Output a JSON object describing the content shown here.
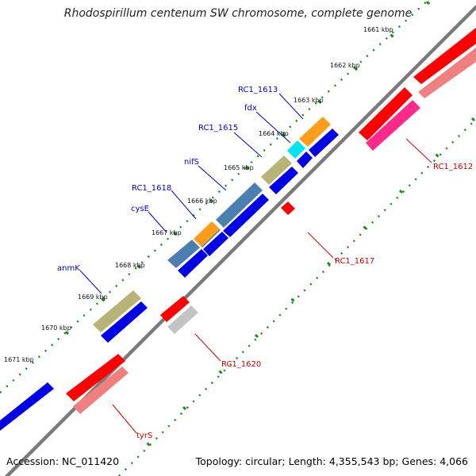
{
  "header": {
    "title": "Rhodospirillum centenum SW chromosome, complete genome"
  },
  "footer": {
    "accession": "Accession: NC_011420",
    "summary": "Topology: circular; Length: 4,355,543 bp; Genes: 4,066"
  },
  "ticks": [
    {
      "label": "1661 kbp"
    },
    {
      "label": "1662 kbp"
    },
    {
      "label": "1663 kbp"
    },
    {
      "label": "1664 kbp"
    },
    {
      "label": "1665 kbp"
    },
    {
      "label": "1666 kbp"
    },
    {
      "label": "1667 kbp"
    },
    {
      "label": "1668 kbp"
    },
    {
      "label": "1669 kbp"
    },
    {
      "label": "1670 kbp"
    },
    {
      "label": "1671 kbp"
    }
  ],
  "genes_forward": [
    {
      "label": "RC1_1613"
    },
    {
      "label": "fdx"
    },
    {
      "label": "RC1_1615"
    },
    {
      "label": "nifS"
    },
    {
      "label": "RC1_1618"
    },
    {
      "label": "cysE"
    },
    {
      "label": "anmK"
    }
  ],
  "genes_reverse": [
    {
      "label": "RC1_1612"
    },
    {
      "label": "RC1_1617"
    },
    {
      "label": "RC1_1620"
    },
    {
      "label": "tyrS"
    }
  ],
  "colors": {
    "backbone": "#7a7a7a",
    "tick": "#1f8a1f",
    "forward_cds": "#0000e6",
    "reverse_cds": "#ff0000",
    "reverse_gene": "#f07f7f",
    "forward_label": "#0000cc",
    "reverse_label": "#cc0000",
    "khaki": "#b8b478",
    "steelblue": "#4a7fb0",
    "orange": "#ff9d1a",
    "cyan": "#00e5ef",
    "magenta": "#ff2a8a",
    "silver": "#c4c4c4"
  }
}
